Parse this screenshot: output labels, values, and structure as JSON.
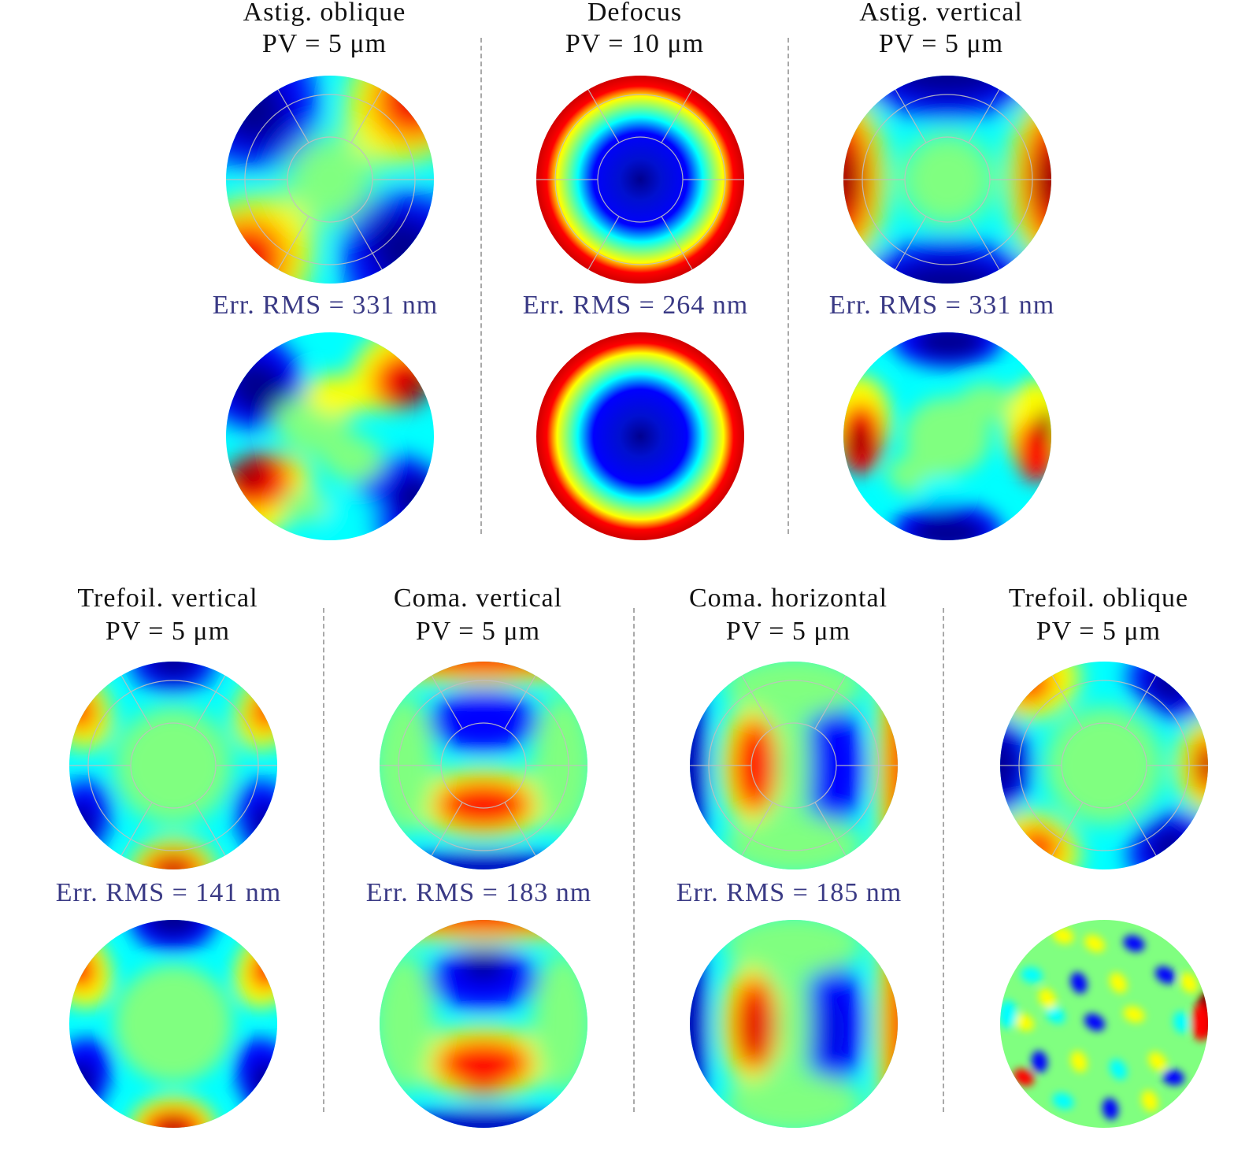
{
  "colors": {
    "error_label": "#3a3a85",
    "title": "#111111",
    "grid": "#c0c0c0",
    "divider": "#a9a9a9",
    "colormap": [
      "#00008f",
      "#0000ff",
      "#00ffff",
      "#80ff80",
      "#ffff00",
      "#ff0000",
      "#800000"
    ]
  },
  "panels": [
    {
      "title": "Astig. oblique",
      "pv": "PV = 5 μm",
      "error": "Err. RMS = 331 nm",
      "aberration": "astigmatism-oblique"
    },
    {
      "title": "Defocus",
      "pv": "PV = 10 μm",
      "error": "Err. RMS = 264 nm",
      "aberration": "defocus"
    },
    {
      "title": "Astig. vertical",
      "pv": "PV = 5 μm",
      "error": "Err. RMS = 331 nm",
      "aberration": "astigmatism-vertical"
    },
    {
      "title": "Trefoil. vertical",
      "pv": "PV = 5 μm",
      "error": "Err. RMS = 141 nm",
      "aberration": "trefoil-vertical"
    },
    {
      "title": "Coma. vertical",
      "pv": "PV = 5 μm",
      "error": "Err. RMS = 183 nm",
      "aberration": "coma-vertical"
    },
    {
      "title": "Coma. horizontal",
      "pv": "PV = 5 μm",
      "error": "Err. RMS = 185 nm",
      "aberration": "coma-horizontal"
    },
    {
      "title": "Trefoil. oblique",
      "pv": "PV = 5 μm",
      "error": "",
      "aberration": "trefoil-oblique"
    }
  ]
}
